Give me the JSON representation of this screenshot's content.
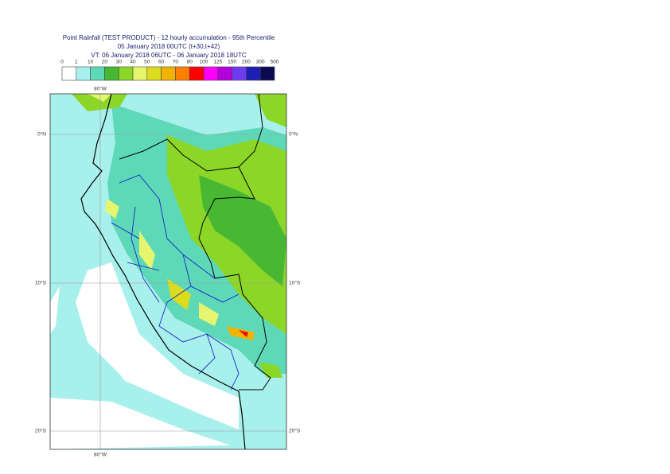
{
  "header": {
    "title_lines": [
      "Point Rainfall (TEST PRODUCT) - 12 hourly accumulation - 95th Percentile",
      "05 January 2018 00UTC (t+30,t+42)",
      "VT: 06 January 2018 06UTC - 06 January 2018 18UTC"
    ]
  },
  "legend": {
    "labels": [
      "0",
      "1",
      "10",
      "20",
      "30",
      "40",
      "50",
      "60",
      "70",
      "80",
      "100",
      "125",
      "150",
      "200",
      "300",
      "500"
    ],
    "colors": [
      "#ffffff",
      "#a8f0ec",
      "#5ed9b8",
      "#48b832",
      "#8cd628",
      "#e6f56e",
      "#dcdc1e",
      "#f0b400",
      "#ff8000",
      "#ff0000",
      "#ff00ff",
      "#b400dc",
      "#6e3cf0",
      "#1e1eb4",
      "#0a0a50"
    ]
  },
  "map": {
    "top_lon_label": "80°W",
    "bottom_lon_label": "80°W",
    "left_lat_labels": [
      "0°N",
      "10°S",
      "20°S"
    ],
    "right_lat_labels": [
      "0°N",
      "10°S",
      "20°S"
    ]
  }
}
